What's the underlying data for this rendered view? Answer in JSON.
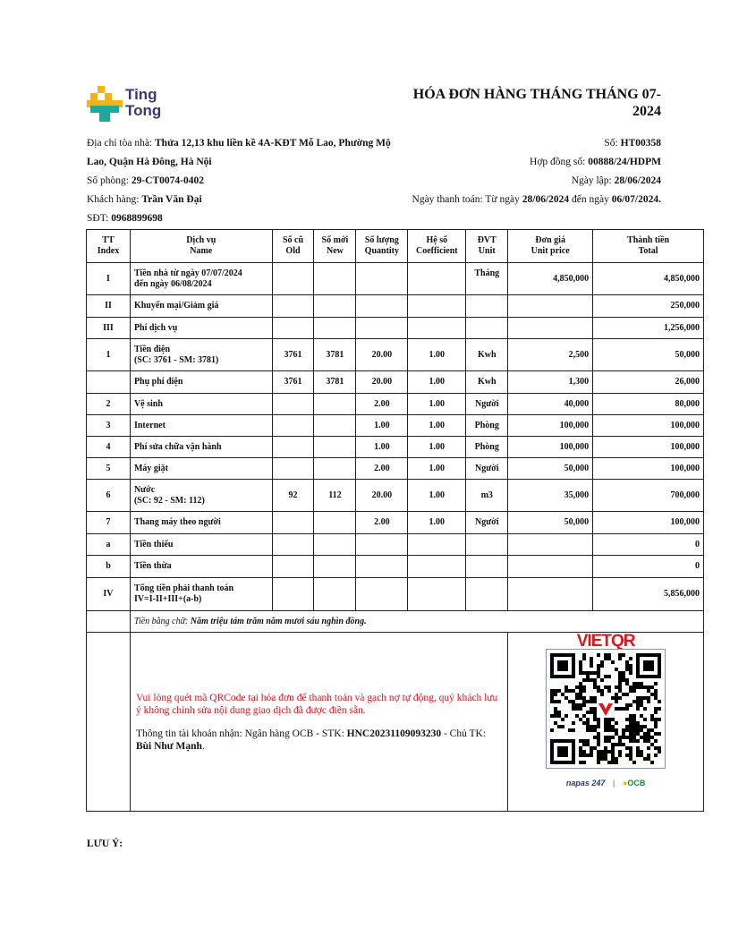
{
  "logo": {
    "line1": "Ting",
    "line2": "Tong",
    "colors": {
      "yellow": "#f5b31a",
      "teal": "#1fa99a",
      "text": "#3b3a6e"
    }
  },
  "title": "HÓA ĐƠN HÀNG THÁNG THÁNG 07-2024",
  "info_left": {
    "address_label": "Địa chỉ tòa nhà: ",
    "address": "Thửa 12,13 khu liền kề 4A-KĐT Mỗ Lao, Phường Mộ Lao, Quận Hà Đông, Hà Nội",
    "room_label": "Số phòng: ",
    "room": "29-CT0074-0402",
    "customer_label": "Khách hàng: ",
    "customer": "Trần Văn Đại",
    "phone_label": "SĐT: ",
    "phone": "0968899698"
  },
  "info_right": {
    "number_label": "Số: ",
    "number": "HT00358",
    "contract_label": "Hợp đồng số: ",
    "contract": "00888/24/HDPM",
    "date_label": "Ngày lập: ",
    "date": "28/06/2024",
    "pay_label": "Ngày thanh toán: Từ ngày ",
    "pay_from": "28/06/2024",
    "pay_mid": " đến ngày ",
    "pay_to": "06/07/2024",
    "pay_end": "."
  },
  "table": {
    "headers": [
      [
        "TT",
        "Index"
      ],
      [
        "Dịch vụ",
        "Name"
      ],
      [
        "Số cũ",
        "Old"
      ],
      [
        "Số mới",
        "New"
      ],
      [
        "Số lượng",
        "Quantity"
      ],
      [
        "Hệ số",
        "Coefficient"
      ],
      [
        "ĐVT",
        "Unit"
      ],
      [
        "Đơn giá",
        "Unit price"
      ],
      [
        "Thành tiền",
        "Total"
      ]
    ],
    "rows": [
      [
        "I",
        "Tiền nhà từ ngày 07/07/2024\nđến ngày 06/08/2024",
        "",
        "",
        "",
        "",
        "Tháng",
        "4,850,000",
        "4,850,000"
      ],
      [
        "II",
        "Khuyến mại/Giảm giá",
        "",
        "",
        "",
        "",
        "",
        "",
        "250,000"
      ],
      [
        "III",
        "Phí dịch vụ",
        "",
        "",
        "",
        "",
        "",
        "",
        "1,256,000"
      ],
      [
        "1",
        "Tiền điện\n(SC: 3761 - SM: 3781)",
        "3761",
        "3781",
        "20.00",
        "1.00",
        "Kwh",
        "2,500",
        "50,000"
      ],
      [
        "",
        "Phụ phí điện",
        "3761",
        "3781",
        "20.00",
        "1.00",
        "Kwh",
        "1,300",
        "26,000"
      ],
      [
        "2",
        "Vệ sinh",
        "",
        "",
        "2.00",
        "1.00",
        "Người",
        "40,000",
        "80,000"
      ],
      [
        "3",
        "Internet",
        "",
        "",
        "1.00",
        "1.00",
        "Phòng",
        "100,000",
        "100,000"
      ],
      [
        "4",
        "Phí sửa chữa vận hành",
        "",
        "",
        "1.00",
        "1.00",
        "Phòng",
        "100,000",
        "100,000"
      ],
      [
        "5",
        "Máy giặt",
        "",
        "",
        "2.00",
        "1.00",
        "Người",
        "50,000",
        "100,000"
      ],
      [
        "6",
        "Nước\n(SC: 92 - SM: 112)",
        "92",
        "112",
        "20.00",
        "1.00",
        "m3",
        "35,000",
        "700,000"
      ],
      [
        "7",
        "Thang máy theo người",
        "",
        "",
        "2.00",
        "1.00",
        "Người",
        "50,000",
        "100,000"
      ],
      [
        "a",
        "Tiền thiếu",
        "",
        "",
        "",
        "",
        "",
        "",
        "0"
      ],
      [
        "b",
        "Tiền thừa",
        "",
        "",
        "",
        "",
        "",
        "",
        "0"
      ],
      [
        "IV",
        "Tổng tiền phải thanh toán\nIV=I-II+III+(a-b)",
        "",
        "",
        "",
        "",
        "",
        "",
        "5,856,000"
      ]
    ],
    "words_label": "Tiền bằng chữ: ",
    "words": "Năm triệu tám trăm năm mươi sáu nghìn đồng."
  },
  "payment": {
    "notice": "Vui lòng quét mã QRCode tại hóa đơn để thanh toán và gạch nợ tự động, quý khách lưu ý không chỉnh sửa nội dung giao dịch đã được điền sẵn.",
    "account_label": "Thông tin tài khoản nhận: Ngân hàng OCB - STK: ",
    "account": "HNC20231109093230",
    "owner_label": " - Chủ TK: ",
    "owner": "Bùi Như Mạnh",
    "owner_end": ".",
    "qr_brand": "VIETQR",
    "napas": "napas 247",
    "bank": "OCB",
    "colors": {
      "notice": "#e0141e",
      "vietqr": "#d71920",
      "ocb": "#1b8a3a"
    }
  },
  "note_label": "LƯU Ý:"
}
